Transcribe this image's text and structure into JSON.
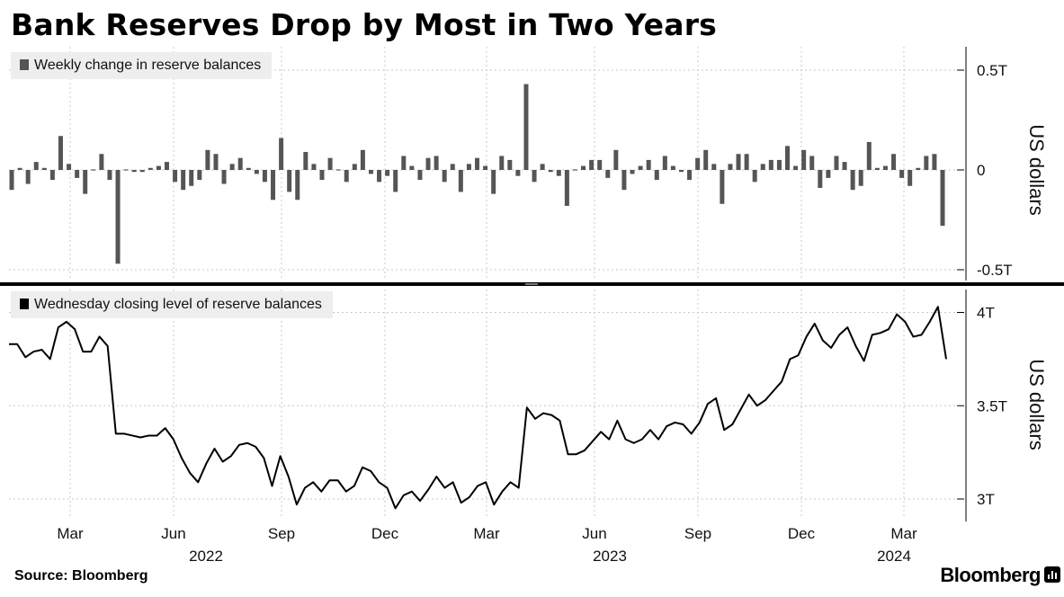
{
  "title": "Bank Reserves Drop by Most in Two Years",
  "source": "Source: Bloomberg",
  "brand": "Bloomberg",
  "colors": {
    "bar": "#555555",
    "line": "#000000",
    "grid": "#c8c8c8",
    "legend_bg": "#eeeeee",
    "divider": "#000000"
  },
  "chart_data": [
    {
      "type": "bar",
      "legend": "Weekly change in reserve balances",
      "unit_label": "US dollars",
      "y_ticks": [
        "0.5T",
        "0",
        "-0.5T"
      ],
      "y_tick_values": [
        0.5,
        0,
        -0.5
      ],
      "ylim": [
        -0.52,
        0.55
      ],
      "grid": true,
      "x_tick_labels": [
        "Mar",
        "Jun",
        "Sep",
        "Dec",
        "Mar",
        "Jun",
        "Sep",
        "Dec",
        "Mar"
      ],
      "year_labels": [
        "2022",
        "2023",
        "2024"
      ],
      "x_start": "2022-01-05",
      "values": [
        -0.1,
        0.01,
        -0.07,
        0.04,
        0.01,
        -0.05,
        0.17,
        0.03,
        -0.04,
        -0.12,
        0.0,
        0.08,
        -0.05,
        -0.47,
        0.0,
        -0.01,
        -0.01,
        0.01,
        0.02,
        0.04,
        -0.06,
        -0.1,
        -0.08,
        -0.05,
        0.1,
        0.08,
        -0.07,
        0.03,
        0.06,
        0.01,
        -0.02,
        -0.06,
        -0.15,
        0.16,
        -0.11,
        -0.15,
        0.09,
        0.03,
        -0.05,
        0.06,
        0.0,
        -0.06,
        0.03,
        0.1,
        -0.02,
        -0.06,
        -0.03,
        -0.11,
        0.07,
        0.02,
        -0.05,
        0.06,
        0.07,
        -0.06,
        0.03,
        -0.11,
        0.03,
        0.06,
        0.02,
        -0.12,
        0.07,
        0.05,
        -0.03,
        0.43,
        -0.06,
        0.03,
        -0.01,
        -0.03,
        -0.18,
        0.0,
        0.02,
        0.05,
        0.05,
        -0.04,
        0.1,
        -0.1,
        -0.02,
        0.02,
        0.05,
        -0.05,
        0.07,
        0.02,
        -0.01,
        -0.05,
        0.06,
        0.1,
        0.03,
        -0.17,
        0.03,
        0.08,
        0.08,
        -0.06,
        0.03,
        0.05,
        0.05,
        0.12,
        0.02,
        0.1,
        0.07,
        -0.09,
        -0.04,
        0.07,
        0.04,
        -0.1,
        -0.08,
        0.14,
        0.01,
        0.02,
        0.08,
        -0.04,
        -0.08,
        0.01,
        0.07,
        0.08,
        -0.28
      ]
    },
    {
      "type": "line",
      "legend": "Wednesday closing level of reserve balances",
      "unit_label": "US dollars",
      "y_ticks": [
        "4T",
        "3.5T",
        "3T"
      ],
      "y_tick_values": [
        4.0,
        3.5,
        3.0
      ],
      "ylim": [
        2.89,
        4.17
      ],
      "grid": true,
      "values": [
        3.83,
        3.83,
        3.76,
        3.79,
        3.8,
        3.75,
        3.92,
        3.95,
        3.91,
        3.79,
        3.79,
        3.87,
        3.82,
        3.35,
        3.35,
        3.34,
        3.33,
        3.34,
        3.34,
        3.38,
        3.32,
        3.22,
        3.14,
        3.09,
        3.19,
        3.27,
        3.2,
        3.23,
        3.29,
        3.3,
        3.28,
        3.22,
        3.07,
        3.23,
        3.12,
        2.97,
        3.06,
        3.09,
        3.04,
        3.1,
        3.1,
        3.04,
        3.07,
        3.17,
        3.15,
        3.09,
        3.06,
        2.95,
        3.02,
        3.04,
        2.99,
        3.05,
        3.12,
        3.06,
        3.09,
        2.98,
        3.01,
        3.07,
        3.09,
        2.97,
        3.04,
        3.09,
        3.06,
        3.49,
        3.43,
        3.46,
        3.45,
        3.42,
        3.24,
        3.24,
        3.26,
        3.31,
        3.36,
        3.32,
        3.42,
        3.32,
        3.3,
        3.32,
        3.37,
        3.32,
        3.39,
        3.41,
        3.4,
        3.35,
        3.41,
        3.51,
        3.54,
        3.37,
        3.4,
        3.48,
        3.56,
        3.5,
        3.53,
        3.58,
        3.63,
        3.75,
        3.77,
        3.87,
        3.94,
        3.85,
        3.81,
        3.88,
        3.92,
        3.82,
        3.74,
        3.88,
        3.89,
        3.91,
        3.99,
        3.95,
        3.87,
        3.88,
        3.95,
        4.03,
        3.75
      ]
    }
  ]
}
